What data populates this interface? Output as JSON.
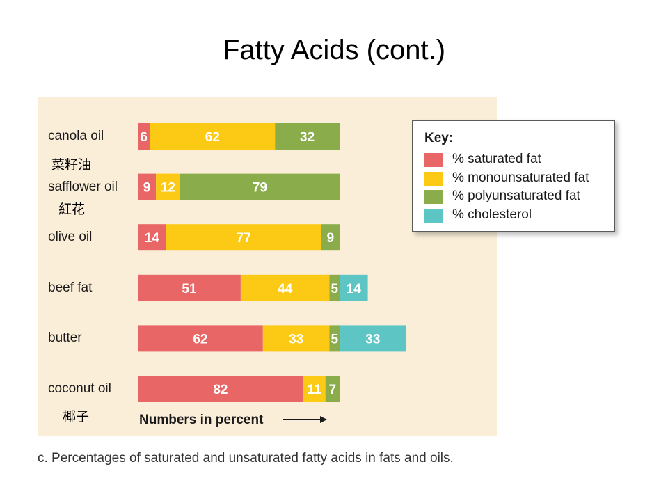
{
  "slide": {
    "title": "Fatty Acids (cont.)",
    "caption": "c. Percentages of saturated and unsaturated fatty acids in fats and oils.",
    "axis_note": "Numbers in percent",
    "chinese_labels": {
      "canola": "菜籽油",
      "safflower": "紅花",
      "coconut": "椰子"
    }
  },
  "colors": {
    "saturated": "#e86666",
    "monounsaturated": "#fcc915",
    "polyunsaturated": "#8aac4a",
    "cholesterol": "#5ec5c5",
    "panel": "#fbeed9"
  },
  "chart_data": {
    "type": "bar",
    "orientation": "horizontal",
    "stacked": true,
    "categories": [
      "canola oil",
      "safflower oil",
      "olive oil",
      "beef fat",
      "butter",
      "coconut oil"
    ],
    "series": [
      {
        "name": "% saturated fat",
        "color_key": "saturated",
        "values": [
          6,
          9,
          14,
          51,
          62,
          82
        ]
      },
      {
        "name": "% monounsaturated fat",
        "color_key": "monounsaturated",
        "values": [
          62,
          12,
          77,
          44,
          33,
          11
        ]
      },
      {
        "name": "% polyunsaturated fat",
        "color_key": "polyunsaturated",
        "values": [
          32,
          79,
          9,
          5,
          5,
          7
        ]
      },
      {
        "name": "% cholesterol",
        "color_key": "cholesterol",
        "values": [
          0,
          0,
          0,
          14,
          33,
          0
        ]
      }
    ],
    "legend_title": "Key:",
    "legend_position": "top-right",
    "xlabel": "Numbers in percent"
  }
}
